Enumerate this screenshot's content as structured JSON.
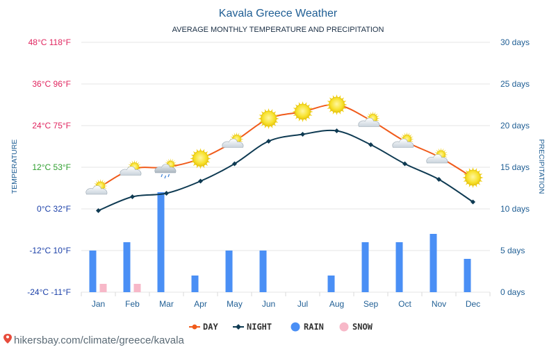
{
  "chart_data": {
    "type": "line",
    "title": "Kavala Greece Weather",
    "subtitle": "AVERAGE MONTHLY TEMPERATURE AND PRECIPITATION",
    "ylabel_left": "TEMPERATURE",
    "ylabel_right": "PRECIPITATION",
    "categories": [
      "Jan",
      "Feb",
      "Mar",
      "Apr",
      "May",
      "Jun",
      "Jul",
      "Aug",
      "Sep",
      "Oct",
      "Nov",
      "Dec"
    ],
    "left_axis": {
      "ylim": [
        -24,
        48
      ],
      "ticks": [
        {
          "value": 48,
          "label": "48°C 118°F",
          "color": "#e0245e"
        },
        {
          "value": 36,
          "label": "36°C 96°F",
          "color": "#e0245e"
        },
        {
          "value": 24,
          "label": "24°C 75°F",
          "color": "#e0245e"
        },
        {
          "value": 12,
          "label": "12°C 53°F",
          "color": "#2e9e2e"
        },
        {
          "value": 0,
          "label": "0°C 32°F",
          "color": "#1a3fa8"
        },
        {
          "value": -12,
          "label": "-12°C 10°F",
          "color": "#1a3fa8"
        },
        {
          "value": -24,
          "label": "-24°C -11°F",
          "color": "#1a3fa8"
        }
      ]
    },
    "right_axis": {
      "ylim": [
        0,
        30
      ],
      "ticks": [
        {
          "value": 30,
          "label": "30 days"
        },
        {
          "value": 25,
          "label": "25 days"
        },
        {
          "value": 20,
          "label": "20 days"
        },
        {
          "value": 15,
          "label": "15 days"
        },
        {
          "value": 10,
          "label": "10 days"
        },
        {
          "value": 5,
          "label": "5 days"
        },
        {
          "value": 0,
          "label": "0 days"
        }
      ]
    },
    "series": [
      {
        "name": "DAY",
        "type": "line",
        "axis": "left",
        "color": "#f05a1a",
        "values": [
          6,
          11.5,
          12,
          14.5,
          19.5,
          26,
          28,
          30,
          25.5,
          19.5,
          15,
          9
        ]
      },
      {
        "name": "NIGHT",
        "type": "line",
        "axis": "left",
        "color": "#0e3a52",
        "values": [
          -0.5,
          3.5,
          4.5,
          8,
          13,
          19.5,
          21.5,
          22.5,
          18.5,
          13,
          8.5,
          2
        ]
      },
      {
        "name": "RAIN",
        "type": "bar",
        "axis": "right",
        "color": "#4a8ff5",
        "values": [
          5,
          6,
          12,
          2,
          5,
          5,
          0,
          2,
          6,
          6,
          7,
          4
        ]
      },
      {
        "name": "SNOW",
        "type": "bar",
        "axis": "right",
        "color": "#f7b8c8",
        "values": [
          1,
          1,
          0,
          0,
          0,
          0,
          0,
          0,
          0,
          0,
          0,
          0
        ]
      }
    ],
    "weather_icons": [
      "sun-cloud-icon",
      "sun-cloud-icon",
      "rain-cloud-icon",
      "sun-icon",
      "sun-cloud-icon",
      "sun-icon",
      "sun-icon",
      "sun-icon",
      "sun-cloud-icon",
      "sun-cloud-icon",
      "sun-cloud-icon",
      "sun-icon"
    ],
    "grid": true,
    "legend_position": "bottom-center"
  },
  "colors": {
    "title": "#1f5e94",
    "axis_text_right": "#1f5e94",
    "month_text": "#1f5e94",
    "grid": "#e6e6e6"
  },
  "footer": {
    "source": "hikersbay.com/climate/greece/kavala",
    "pin_icon": "map-pin-icon"
  }
}
